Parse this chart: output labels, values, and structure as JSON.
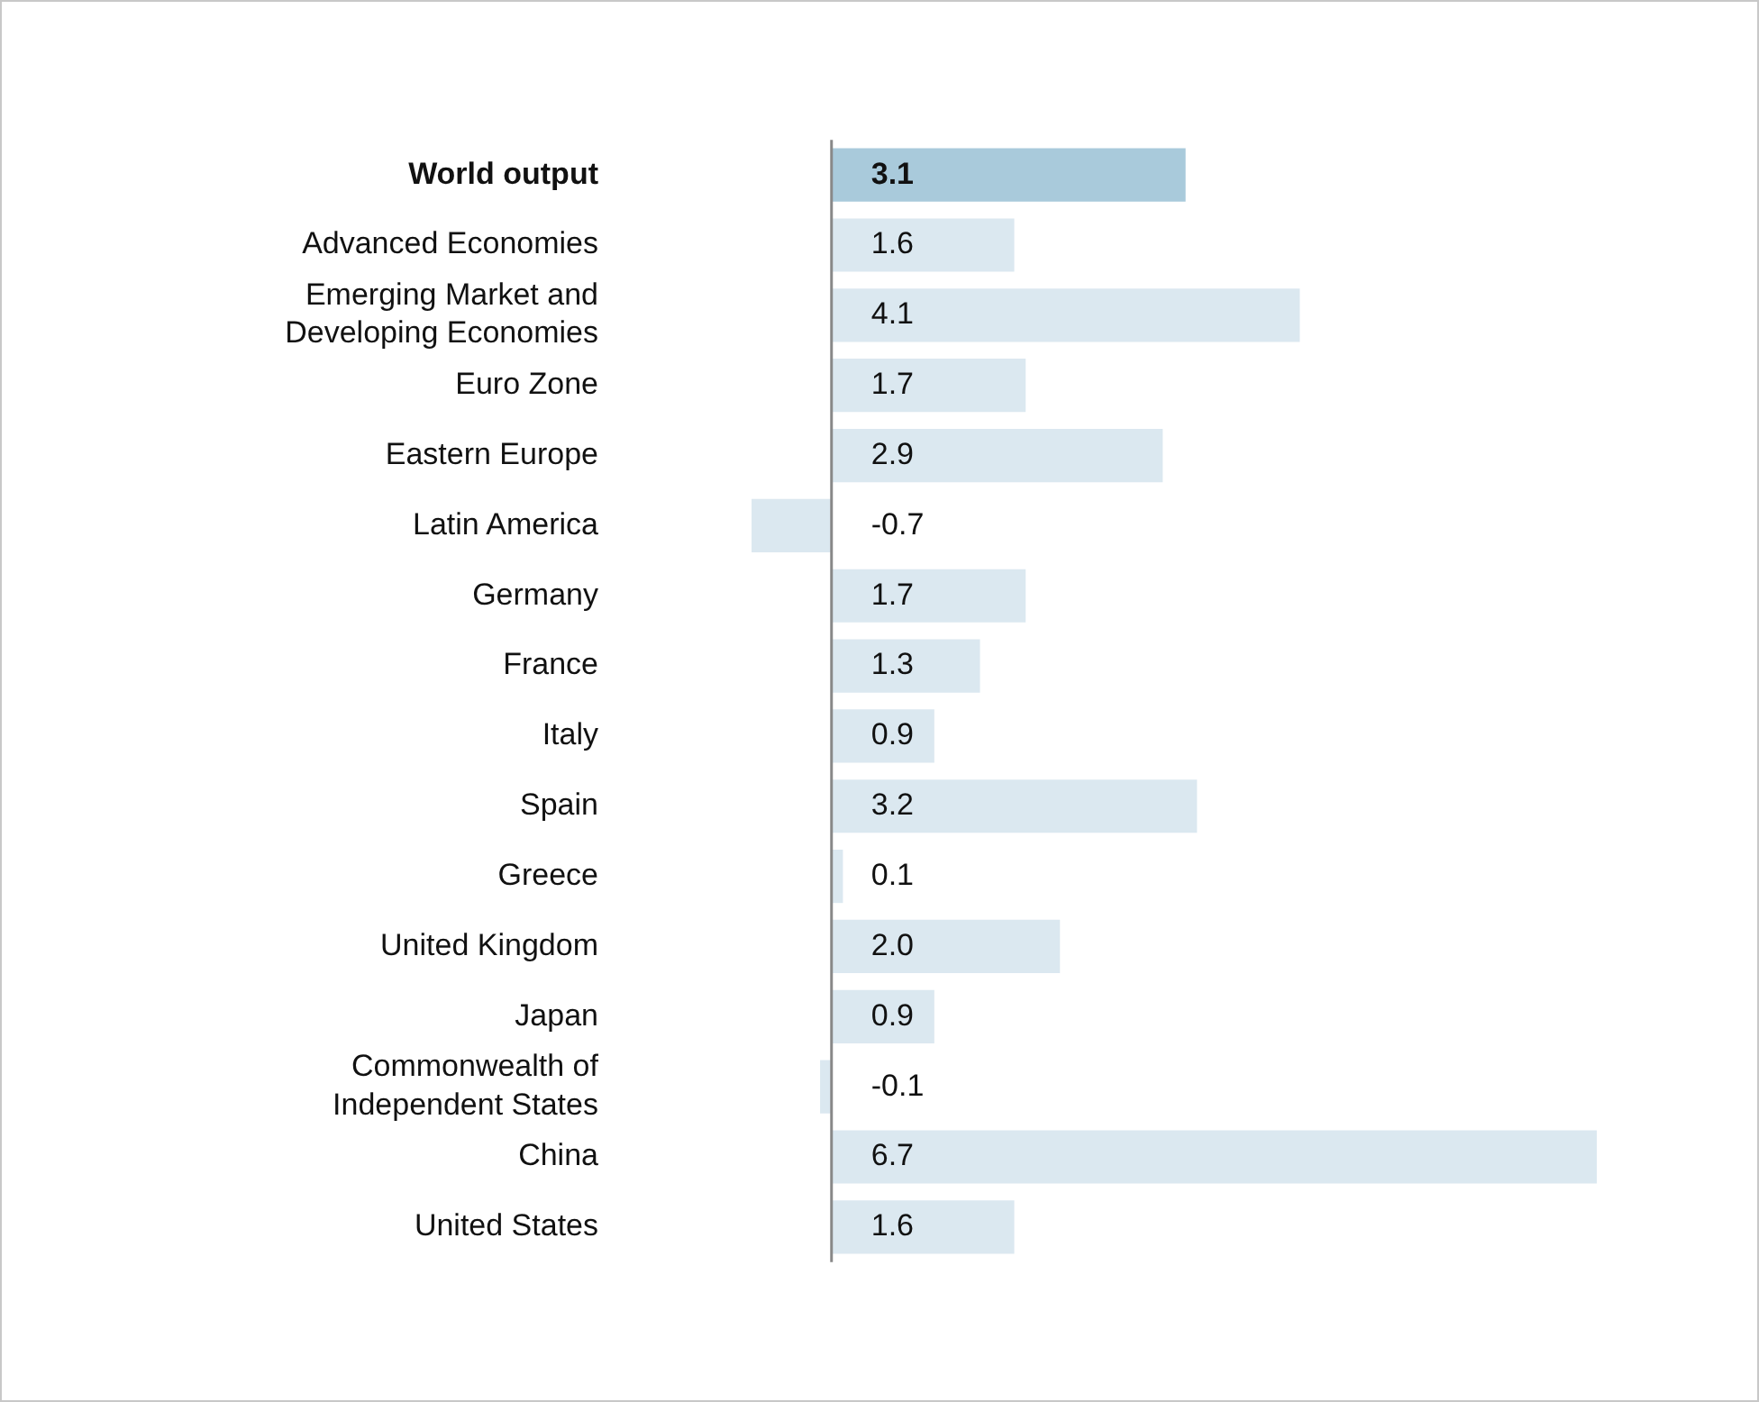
{
  "chart_data": {
    "type": "bar",
    "orientation": "horizontal",
    "categories": [
      "World output",
      "Advanced Economies",
      "Emerging Market and Developing Economies",
      "Euro Zone",
      "Eastern Europe",
      "Latin America",
      "Germany",
      "France",
      "Italy",
      "Spain",
      "Greece",
      "United Kingdom",
      "Japan",
      "Commonwealth of Independent States",
      "China",
      "United States"
    ],
    "values": [
      3.1,
      1.6,
      4.1,
      1.7,
      2.9,
      -0.7,
      1.7,
      1.3,
      0.9,
      3.2,
      0.1,
      2.0,
      0.9,
      -0.1,
      6.7,
      1.6
    ],
    "value_labels": [
      "3.1",
      "1.6",
      "4.1",
      "1.7",
      "2.9",
      "-0.7",
      "1.7",
      "1.3",
      "0.9",
      "3.2",
      "0.1",
      "2.0",
      "0.9",
      "-0.1",
      "6.7",
      "1.6"
    ],
    "colors": [
      "#a9cadb",
      "#dbe8f0",
      "#dbe8f0",
      "#dbe8f0",
      "#dbe8f0",
      "#dbe8f0",
      "#dbe8f0",
      "#dbe8f0",
      "#dbe8f0",
      "#dbe8f0",
      "#dbe8f0",
      "#dbe8f0",
      "#dbe8f0",
      "#dbe8f0",
      "#dbe8f0",
      "#dbe8f0"
    ],
    "grid": false,
    "legend": false
  }
}
